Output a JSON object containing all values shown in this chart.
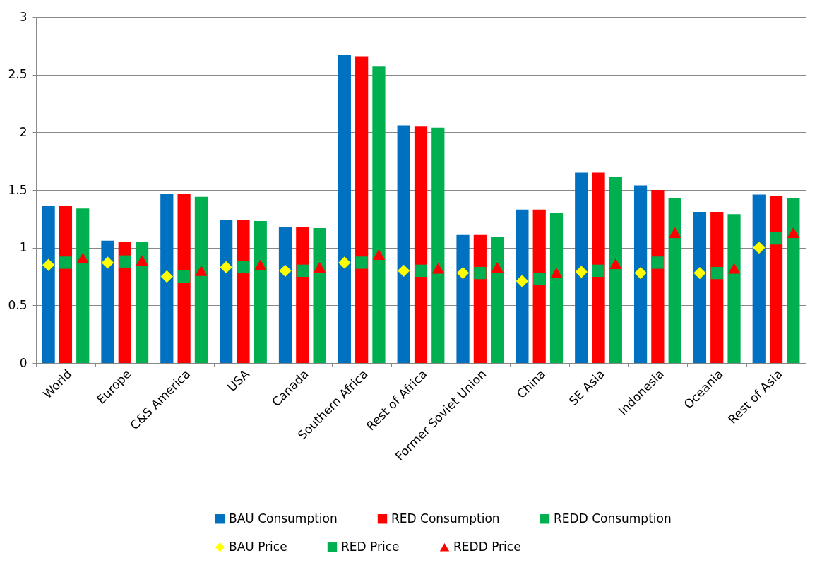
{
  "chart_data": {
    "type": "bar",
    "categories": [
      "World",
      "Europe",
      "C&S America",
      "USA",
      "Canada",
      "Southern Africa",
      "Rest of Africa",
      "Former Soviet Union",
      "China",
      "SE Asia",
      "Indonesia",
      "Oceania",
      "Rest of Asia"
    ],
    "series": [
      {
        "name": "BAU Consumption",
        "color": "#0070c0",
        "values": [
          1.36,
          1.06,
          1.47,
          1.24,
          1.18,
          2.67,
          2.06,
          1.11,
          1.33,
          1.65,
          1.54,
          1.31,
          1.46
        ]
      },
      {
        "name": "RED Consumption",
        "color": "#ff0000",
        "values": [
          1.36,
          1.05,
          1.47,
          1.24,
          1.18,
          2.66,
          2.05,
          1.11,
          1.33,
          1.65,
          1.5,
          1.31,
          1.45
        ]
      },
      {
        "name": "REDD Consumption",
        "color": "#00b050",
        "values": [
          1.34,
          1.05,
          1.44,
          1.23,
          1.17,
          2.57,
          2.04,
          1.09,
          1.3,
          1.61,
          1.43,
          1.29,
          1.43
        ]
      },
      {
        "name": "BAU Price",
        "type": "scatter",
        "marker": "diamond",
        "color": "#ffff00",
        "values": [
          0.85,
          0.87,
          0.75,
          0.83,
          0.8,
          0.87,
          0.8,
          0.78,
          0.71,
          0.79,
          0.78,
          0.78,
          1.0
        ]
      },
      {
        "name": "RED Price",
        "type": "scatter",
        "marker": "square",
        "color": "#00b050",
        "values": [
          0.87,
          0.88,
          0.75,
          0.83,
          0.8,
          0.87,
          0.8,
          0.78,
          0.73,
          0.8,
          0.87,
          0.78,
          1.08
        ]
      },
      {
        "name": "REDD Price",
        "type": "scatter",
        "marker": "triangle",
        "color": "#ff0000",
        "values": [
          0.91,
          0.89,
          0.8,
          0.85,
          0.83,
          0.94,
          0.82,
          0.83,
          0.78,
          0.86,
          1.13,
          0.82,
          1.13
        ]
      }
    ],
    "ylim": [
      0,
      3
    ],
    "yticks": [
      0,
      0.5,
      1,
      1.5,
      2,
      2.5,
      3
    ],
    "grid": "y",
    "legend": "bottom"
  }
}
